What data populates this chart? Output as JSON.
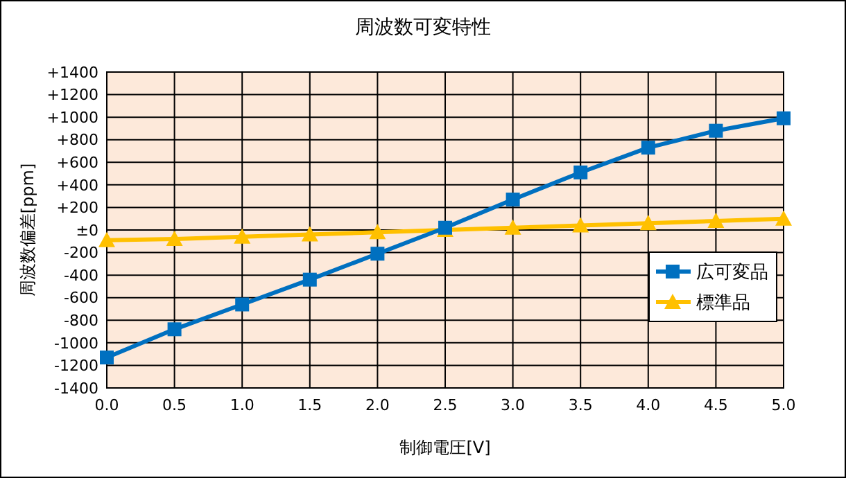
{
  "chart_data": {
    "type": "line",
    "title": "周波数可変特性",
    "xlabel": "制御電圧[V]",
    "ylabel": "周波数偏差[ppm]",
    "x": [
      0,
      0.5,
      1,
      1.5,
      2,
      2.5,
      3,
      3.5,
      4,
      4.5,
      5
    ],
    "series": [
      {
        "name": "広可変品",
        "color": "#0070c0",
        "marker": "square",
        "values": [
          -1130,
          -880,
          -660,
          -440,
          -210,
          20,
          270,
          510,
          730,
          880,
          990
        ]
      },
      {
        "name": "標準品",
        "color": "#ffc000",
        "marker": "triangle",
        "values": [
          -90,
          -80,
          -60,
          -40,
          -20,
          0,
          20,
          40,
          60,
          80,
          100
        ]
      }
    ],
    "xlim": [
      0,
      5
    ],
    "xticks": [
      {
        "value": 0,
        "label": "0.0"
      },
      {
        "value": 0.5,
        "label": "0.5"
      },
      {
        "value": 1,
        "label": "1.0"
      },
      {
        "value": 1.5,
        "label": "1.5"
      },
      {
        "value": 2,
        "label": "2.0"
      },
      {
        "value": 2.5,
        "label": "2.5"
      },
      {
        "value": 3,
        "label": "3.0"
      },
      {
        "value": 3.5,
        "label": "3.5"
      },
      {
        "value": 4,
        "label": "4.0"
      },
      {
        "value": 4.5,
        "label": "4.5"
      },
      {
        "value": 5,
        "label": "5.0"
      }
    ],
    "ylim": [
      -1400,
      1400
    ],
    "yticks": [
      -1400,
      -1200,
      -1000,
      -800,
      -600,
      -400,
      -200,
      {
        "value": 0,
        "label": "±0"
      },
      {
        "value": 200,
        "label": "+200"
      },
      {
        "value": 400,
        "label": "+400"
      },
      {
        "value": 600,
        "label": "+600"
      },
      {
        "value": 800,
        "label": "+800"
      },
      {
        "value": 1000,
        "label": "+1000"
      },
      {
        "value": 1200,
        "label": "+1200"
      },
      {
        "value": 1400,
        "label": "+1400"
      }
    ],
    "grid": true,
    "legend": "right",
    "line_style": "solid"
  }
}
